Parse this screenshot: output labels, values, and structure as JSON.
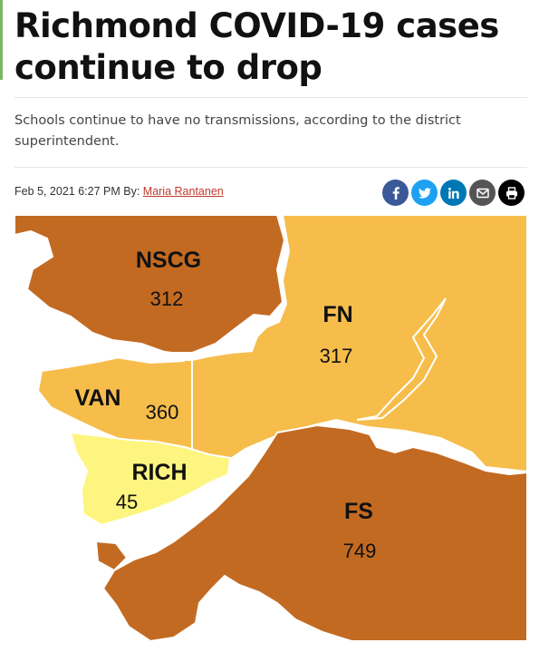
{
  "article": {
    "headline": "Richmond COVID-19 cases continue to drop",
    "subheadline": "Schools continue to have no transmissions, according to the district superintendent.",
    "date": "Feb 5, 2021 6:27 PM",
    "by_label": "By:",
    "author": "Maria Rantanen"
  },
  "share_buttons": [
    {
      "icon": "facebook-icon",
      "color": "#3b5998"
    },
    {
      "icon": "twitter-icon",
      "color": "#1da1f2"
    },
    {
      "icon": "linkedin-icon",
      "color": "#0077b5"
    },
    {
      "icon": "email-icon",
      "color": "#555555"
    },
    {
      "icon": "print-icon",
      "color": "#000000"
    }
  ],
  "map": {
    "colors": {
      "dark": "#c36a22",
      "medium": "#f6bd4b",
      "light": "#fdf57f",
      "water": "#ffffff"
    },
    "regions": [
      {
        "name": "NSCG",
        "value": "312"
      },
      {
        "name": "FN",
        "value": "317"
      },
      {
        "name": "VAN",
        "value": "360"
      },
      {
        "name": "RICH",
        "value": "45"
      },
      {
        "name": "FS",
        "value": "749"
      }
    ]
  }
}
